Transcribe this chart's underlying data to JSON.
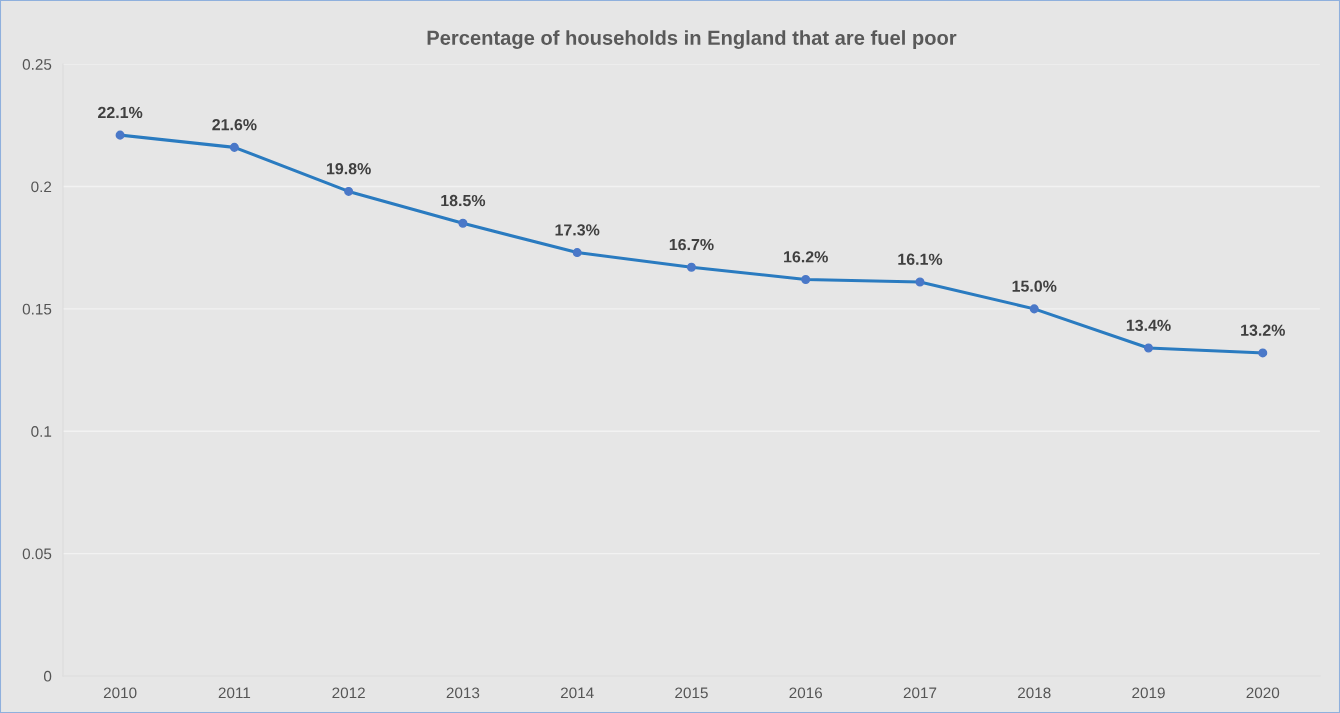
{
  "chart_data": {
    "type": "line",
    "title": "Percentage of households in England that are fuel poor",
    "categories": [
      "2010",
      "2011",
      "2012",
      "2013",
      "2014",
      "2015",
      "2016",
      "2017",
      "2018",
      "2019",
      "2020"
    ],
    "series": [
      {
        "color": "#2a7bc0",
        "values": [
          0.221,
          0.216,
          0.198,
          0.185,
          0.173,
          0.167,
          0.162,
          0.161,
          0.15,
          0.134,
          0.132
        ],
        "value_labels": [
          "22.1%",
          "21.6%",
          "19.8%",
          "18.5%",
          "17.3%",
          "16.7%",
          "16.2%",
          "16.1%",
          "15.0%",
          "13.4%",
          "13.2%"
        ]
      }
    ],
    "ylim": [
      0,
      0.25
    ],
    "yticks": [
      0,
      0.05,
      0.1,
      0.15,
      0.2,
      0.25
    ],
    "grid": "y",
    "marker": "circle",
    "line_style": "solid"
  }
}
